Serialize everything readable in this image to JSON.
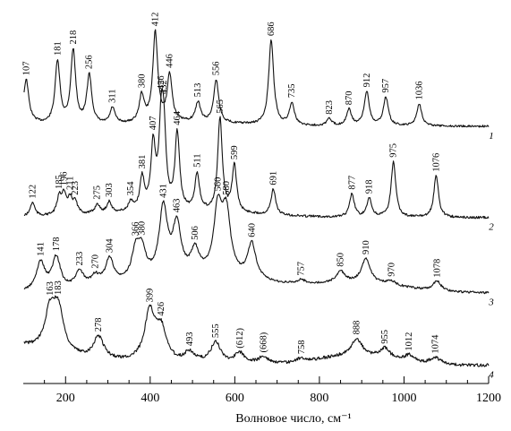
{
  "chart_data": {
    "type": "line",
    "xlabel": "Волновое число, см⁻¹",
    "xlim": [
      100,
      1200
    ],
    "x_ticks": [
      "200",
      "400",
      "600",
      "800",
      "1000",
      "1200"
    ],
    "y_axis_shown": false,
    "series": [
      {
        "name": "1",
        "peaks": [
          {
            "x": 107,
            "label": "107",
            "height": 0.45
          },
          {
            "x": 181,
            "label": "181",
            "height": 0.7
          },
          {
            "x": 218,
            "label": "218",
            "height": 0.82
          },
          {
            "x": 256,
            "label": "256",
            "height": 0.55
          },
          {
            "x": 311,
            "label": "311",
            "height": 0.18
          },
          {
            "x": 380,
            "label": "380",
            "height": 0.3
          },
          {
            "x": 412,
            "label": "412",
            "height": 1.0
          },
          {
            "x": 446,
            "label": "446",
            "height": 0.52
          },
          {
            "x": 513,
            "label": "513",
            "height": 0.22
          },
          {
            "x": 556,
            "label": "556",
            "height": 0.48
          },
          {
            "x": 686,
            "label": "686",
            "height": 0.95
          },
          {
            "x": 735,
            "label": "735",
            "height": 0.25
          },
          {
            "x": 823,
            "label": "823",
            "height": 0.08
          },
          {
            "x": 870,
            "label": "870",
            "height": 0.18
          },
          {
            "x": 912,
            "label": "912",
            "height": 0.38
          },
          {
            "x": 957,
            "label": "957",
            "height": 0.32
          },
          {
            "x": 1036,
            "label": "1036",
            "height": 0.25
          }
        ]
      },
      {
        "name": "2",
        "peaks": [
          {
            "x": 122,
            "label": "122",
            "height": 0.15
          },
          {
            "x": 185,
            "label": "185",
            "height": 0.18
          },
          {
            "x": 196,
            "label": "196",
            "height": 0.2
          },
          {
            "x": 211,
            "label": "211",
            "height": 0.16
          },
          {
            "x": 223,
            "label": "223",
            "height": 0.12
          },
          {
            "x": 275,
            "label": "275",
            "height": 0.1
          },
          {
            "x": 303,
            "label": "303",
            "height": 0.12
          },
          {
            "x": 354,
            "label": "354",
            "height": 0.1
          },
          {
            "x": 381,
            "label": "381",
            "height": 0.35
          },
          {
            "x": 407,
            "label": "407",
            "height": 0.68
          },
          {
            "x": 426,
            "label": "426",
            "height": 0.78
          },
          {
            "x": 432,
            "label": "432",
            "height": 0.72
          },
          {
            "x": 464,
            "label": "464",
            "height": 0.82
          },
          {
            "x": 511,
            "label": "511",
            "height": 0.4
          },
          {
            "x": 565,
            "label": "565",
            "height": 1.0
          },
          {
            "x": 599,
            "label": "599",
            "height": 0.5
          },
          {
            "x": 691,
            "label": "691",
            "height": 0.28
          },
          {
            "x": 877,
            "label": "877",
            "height": 0.25
          },
          {
            "x": 918,
            "label": "918",
            "height": 0.2
          },
          {
            "x": 975,
            "label": "975",
            "height": 0.6
          },
          {
            "x": 1076,
            "label": "1076",
            "height": 0.45
          }
        ]
      },
      {
        "name": "3",
        "peaks": [
          {
            "x": 141,
            "label": "141",
            "height": 0.35
          },
          {
            "x": 178,
            "label": "178",
            "height": 0.4
          },
          {
            "x": 233,
            "label": "233",
            "height": 0.2
          },
          {
            "x": 270,
            "label": "270",
            "height": 0.12
          },
          {
            "x": 304,
            "label": "304",
            "height": 0.32
          },
          {
            "x": 366,
            "label": "366",
            "height": 0.35
          },
          {
            "x": 380,
            "label": "380",
            "height": 0.32
          },
          {
            "x": 431,
            "label": "431",
            "height": 0.85
          },
          {
            "x": 463,
            "label": "463",
            "height": 0.62
          },
          {
            "x": 506,
            "label": "506",
            "height": 0.3
          },
          {
            "x": 560,
            "label": "560",
            "height": 0.8
          },
          {
            "x": 580,
            "label": "580",
            "height": 0.75
          },
          {
            "x": 640,
            "label": "640",
            "height": 0.45
          },
          {
            "x": 757,
            "label": "757",
            "height": 0.05
          },
          {
            "x": 850,
            "label": "850",
            "height": 0.14
          },
          {
            "x": 910,
            "label": "910",
            "height": 0.3
          },
          {
            "x": 970,
            "label": "970",
            "height": 0.05
          },
          {
            "x": 1078,
            "label": "1078",
            "height": 0.12
          }
        ]
      },
      {
        "name": "4",
        "peaks": [
          {
            "x": 163,
            "label": "163",
            "height": 0.55
          },
          {
            "x": 183,
            "label": "183",
            "height": 0.6
          },
          {
            "x": 278,
            "label": "278",
            "height": 0.32
          },
          {
            "x": 399,
            "label": "399",
            "height": 0.7
          },
          {
            "x": 426,
            "label": "426",
            "height": 0.45
          },
          {
            "x": 493,
            "label": "493",
            "height": 0.15
          },
          {
            "x": 555,
            "label": "555",
            "height": 0.3
          },
          {
            "x": 612,
            "label": "(612)",
            "height": 0.15
          },
          {
            "x": 668,
            "label": "(668)",
            "height": 0.1
          },
          {
            "x": 758,
            "label": "758",
            "height": 0.05
          },
          {
            "x": 888,
            "label": "888",
            "height": 0.25
          },
          {
            "x": 955,
            "label": "955",
            "height": 0.15
          },
          {
            "x": 1012,
            "label": "1012",
            "height": 0.1
          },
          {
            "x": 1074,
            "label": "1074",
            "height": 0.1
          }
        ]
      }
    ]
  }
}
